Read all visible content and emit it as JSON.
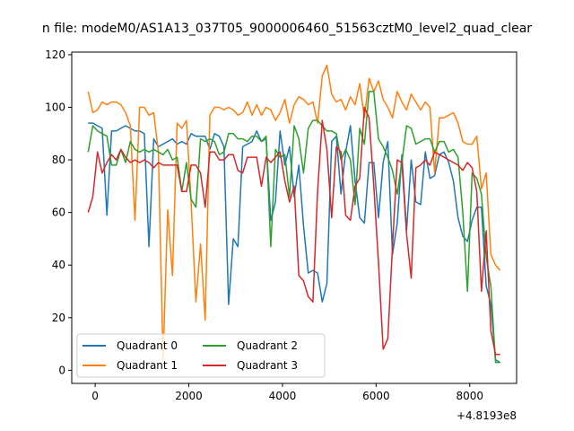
{
  "chart_data": {
    "type": "line",
    "title": "n file: modeM0/AS1A13_037T05_9000006460_51563cztM0_level2_quad_clear",
    "xlabel": "",
    "ylabel": "",
    "x_offset_label": "+4.8193e8",
    "xlim": [
      -500,
      9000
    ],
    "ylim": [
      -5,
      121
    ],
    "x_ticks": [
      0,
      2000,
      4000,
      6000,
      8000
    ],
    "x_tick_labels": [
      "0",
      "2000",
      "4000",
      "6000",
      "8000"
    ],
    "y_ticks": [
      0,
      20,
      40,
      60,
      80,
      100,
      120
    ],
    "y_tick_labels": [
      "0",
      "20",
      "40",
      "60",
      "80",
      "100",
      "120"
    ],
    "grid": false,
    "legend_position": "lower-left",
    "legend_columns": 2,
    "x": [
      -150,
      -50,
      50,
      150,
      250,
      350,
      450,
      550,
      650,
      750,
      850,
      950,
      1050,
      1150,
      1250,
      1350,
      1450,
      1550,
      1650,
      1750,
      1850,
      1950,
      2050,
      2150,
      2250,
      2350,
      2450,
      2550,
      2650,
      2750,
      2850,
      2950,
      3050,
      3150,
      3250,
      3350,
      3450,
      3550,
      3650,
      3750,
      3850,
      3950,
      4050,
      4150,
      4250,
      4350,
      4450,
      4550,
      4650,
      4750,
      4850,
      4950,
      5050,
      5150,
      5250,
      5350,
      5450,
      5550,
      5650,
      5750,
      5850,
      5950,
      6050,
      6150,
      6250,
      6350,
      6450,
      6550,
      6650,
      6750,
      6850,
      6950,
      7050,
      7150,
      7250,
      7350,
      7450,
      7550,
      7650,
      7750,
      7850,
      7950,
      8050,
      8150,
      8250,
      8350,
      8450,
      8550,
      8650
    ],
    "series": [
      {
        "name": "Quadrant 0",
        "color": "#1f77b4",
        "values": [
          94,
          94,
          93,
          92,
          59,
          91,
          91,
          92,
          93,
          92,
          91,
          91,
          90,
          47,
          88,
          85,
          86,
          87,
          88,
          86,
          87,
          86,
          90,
          89,
          89,
          89,
          84,
          90,
          89,
          85,
          25,
          50,
          47,
          85,
          86,
          87,
          91,
          87,
          88,
          57,
          64,
          91,
          78,
          85,
          66,
          78,
          55,
          37,
          38,
          37,
          26,
          33,
          87,
          89,
          67,
          83,
          93,
          72,
          58,
          56,
          79,
          79,
          58,
          79,
          87,
          44,
          56,
          82,
          53,
          80,
          64,
          63,
          83,
          73,
          74,
          82,
          83,
          79,
          72,
          58,
          51,
          49,
          57,
          62,
          62,
          32,
          25,
          4,
          3
        ]
      },
      {
        "name": "Quadrant 1",
        "color": "#ff7f0e",
        "values": [
          106,
          98,
          99,
          102,
          101,
          102,
          102,
          101,
          98,
          93,
          57,
          100,
          100,
          97,
          98,
          83,
          4,
          61,
          36,
          94,
          92,
          95,
          64,
          26,
          48,
          19,
          97,
          100,
          100,
          99,
          100,
          99,
          97,
          98,
          102,
          97,
          101,
          97,
          100,
          99,
          95,
          98,
          103,
          94,
          101,
          104,
          103,
          101,
          102,
          94,
          112,
          116,
          105,
          102,
          103,
          99,
          104,
          101,
          109,
          96,
          111,
          106,
          110,
          103,
          100,
          96,
          106,
          102,
          99,
          105,
          102,
          99,
          102,
          100,
          75,
          96,
          96,
          97,
          98,
          94,
          87,
          86,
          86,
          89,
          69,
          75,
          44,
          40,
          38
        ]
      },
      {
        "name": "Quadrant 2",
        "color": "#2ca02c",
        "values": [
          83,
          93,
          91,
          90,
          89,
          78,
          78,
          84,
          79,
          87,
          84,
          83,
          84,
          83,
          84,
          83,
          82,
          84,
          80,
          81,
          68,
          79,
          65,
          62,
          88,
          87,
          88,
          87,
          82,
          83,
          90,
          90,
          88,
          88,
          87,
          89,
          89,
          87,
          89,
          47,
          84,
          81,
          82,
          66,
          93,
          88,
          75,
          92,
          95,
          95,
          93,
          91,
          91,
          90,
          80,
          84,
          80,
          63,
          92,
          86,
          106,
          106,
          88,
          85,
          81,
          76,
          67,
          79,
          93,
          92,
          86,
          87,
          88,
          88,
          83,
          87,
          87,
          83,
          84,
          81,
          60,
          30,
          75,
          73,
          67,
          43,
          32,
          3,
          3
        ]
      },
      {
        "name": "Quadrant 3",
        "color": "#d62728",
        "values": [
          60,
          66,
          83,
          75,
          79,
          82,
          80,
          84,
          81,
          79,
          80,
          79,
          80,
          79,
          77,
          79,
          78,
          78,
          78,
          78,
          68,
          68,
          78,
          78,
          75,
          62,
          83,
          83,
          80,
          80,
          82,
          82,
          76,
          75,
          81,
          81,
          81,
          70,
          81,
          79,
          81,
          83,
          72,
          64,
          70,
          36,
          34,
          28,
          26,
          68,
          95,
          84,
          58,
          85,
          83,
          59,
          57,
          70,
          73,
          100,
          96,
          70,
          41,
          8,
          12,
          47,
          80,
          79,
          52,
          35,
          77,
          78,
          80,
          78,
          83,
          82,
          81,
          80,
          79,
          78,
          76,
          79,
          77,
          68,
          30,
          53,
          15,
          6,
          6
        ]
      }
    ]
  }
}
